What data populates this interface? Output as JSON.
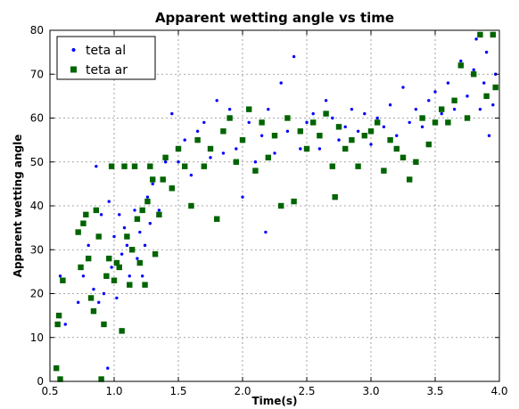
{
  "chart_data": {
    "type": "scatter",
    "title": "Apparent wetting angle vs time",
    "xlabel": "Time(s)",
    "ylabel": "Apparent wetting angle",
    "xlim": [
      0.5,
      4.0
    ],
    "ylim": [
      0,
      80
    ],
    "x_ticks": [
      "0.5",
      "1.0",
      "1.5",
      "2.0",
      "2.5",
      "3.0",
      "3.5",
      "4.0"
    ],
    "y_ticks": [
      "0",
      "10",
      "20",
      "30",
      "40",
      "50",
      "60",
      "70",
      "80"
    ],
    "grid": true,
    "legend_position": "top-left",
    "series": [
      {
        "name": "teta al",
        "marker": "dot",
        "color": "#0000ff",
        "points": [
          [
            0.56,
            15.0
          ],
          [
            0.58,
            24.0
          ],
          [
            0.62,
            13.0
          ],
          [
            0.72,
            18.0
          ],
          [
            0.76,
            24.0
          ],
          [
            0.8,
            31.0
          ],
          [
            0.84,
            21.0
          ],
          [
            0.86,
            49.0
          ],
          [
            0.88,
            18.0
          ],
          [
            0.9,
            38.0
          ],
          [
            0.92,
            20.0
          ],
          [
            0.95,
            3.0
          ],
          [
            0.96,
            41.0
          ],
          [
            0.98,
            26.0
          ],
          [
            1.0,
            33.0
          ],
          [
            1.02,
            19.0
          ],
          [
            1.04,
            38.0
          ],
          [
            1.06,
            29.0
          ],
          [
            1.08,
            35.0
          ],
          [
            1.1,
            31.0
          ],
          [
            1.12,
            24.0
          ],
          [
            1.14,
            30.0
          ],
          [
            1.16,
            39.0
          ],
          [
            1.18,
            28.0
          ],
          [
            1.2,
            34.0
          ],
          [
            1.22,
            24.0
          ],
          [
            1.24,
            31.0
          ],
          [
            1.26,
            42.0
          ],
          [
            1.28,
            36.0
          ],
          [
            1.3,
            45.0
          ],
          [
            1.35,
            39.0
          ],
          [
            1.4,
            50.0
          ],
          [
            1.45,
            61.0
          ],
          [
            1.5,
            50.0
          ],
          [
            1.55,
            55.0
          ],
          [
            1.6,
            47.0
          ],
          [
            1.65,
            57.0
          ],
          [
            1.7,
            59.0
          ],
          [
            1.75,
            51.0
          ],
          [
            1.8,
            64.0
          ],
          [
            1.85,
            52.0
          ],
          [
            1.9,
            62.0
          ],
          [
            1.95,
            53.0
          ],
          [
            2.0,
            42.0
          ],
          [
            2.05,
            59.0
          ],
          [
            2.1,
            50.0
          ],
          [
            2.15,
            56.0
          ],
          [
            2.18,
            34.0
          ],
          [
            2.2,
            62.0
          ],
          [
            2.25,
            52.0
          ],
          [
            2.3,
            68.0
          ],
          [
            2.35,
            57.0
          ],
          [
            2.4,
            74.0
          ],
          [
            2.45,
            53.0
          ],
          [
            2.5,
            59.0
          ],
          [
            2.55,
            61.0
          ],
          [
            2.6,
            53.0
          ],
          [
            2.65,
            64.0
          ],
          [
            2.7,
            60.0
          ],
          [
            2.75,
            55.0
          ],
          [
            2.8,
            58.0
          ],
          [
            2.85,
            62.0
          ],
          [
            2.9,
            57.0
          ],
          [
            2.95,
            61.0
          ],
          [
            3.0,
            54.0
          ],
          [
            3.05,
            60.0
          ],
          [
            3.1,
            58.0
          ],
          [
            3.15,
            63.0
          ],
          [
            3.2,
            56.0
          ],
          [
            3.25,
            67.0
          ],
          [
            3.3,
            59.0
          ],
          [
            3.35,
            62.0
          ],
          [
            3.4,
            58.0
          ],
          [
            3.45,
            64.0
          ],
          [
            3.5,
            66.0
          ],
          [
            3.55,
            61.0
          ],
          [
            3.6,
            68.0
          ],
          [
            3.65,
            62.0
          ],
          [
            3.7,
            73.0
          ],
          [
            3.75,
            65.0
          ],
          [
            3.8,
            71.0
          ],
          [
            3.82,
            78.0
          ],
          [
            3.85,
            62.0
          ],
          [
            3.88,
            68.0
          ],
          [
            3.9,
            75.0
          ],
          [
            3.92,
            56.0
          ],
          [
            3.95,
            63.0
          ],
          [
            3.97,
            70.0
          ]
        ]
      },
      {
        "name": "teta ar",
        "marker": "square",
        "color": "#006400",
        "points": [
          [
            0.55,
            3.0
          ],
          [
            0.56,
            13.0
          ],
          [
            0.57,
            15.0
          ],
          [
            0.58,
            0.5
          ],
          [
            0.6,
            23.0
          ],
          [
            0.72,
            34.0
          ],
          [
            0.74,
            26.0
          ],
          [
            0.76,
            36.0
          ],
          [
            0.78,
            38.0
          ],
          [
            0.8,
            28.0
          ],
          [
            0.82,
            19.0
          ],
          [
            0.84,
            16.0
          ],
          [
            0.86,
            39.0
          ],
          [
            0.88,
            33.0
          ],
          [
            0.9,
            0.5
          ],
          [
            0.92,
            13.0
          ],
          [
            0.94,
            24.0
          ],
          [
            0.96,
            28.0
          ],
          [
            0.98,
            49.0
          ],
          [
            1.0,
            23.0
          ],
          [
            1.02,
            27.0
          ],
          [
            1.04,
            26.0
          ],
          [
            1.06,
            11.5
          ],
          [
            1.08,
            49.0
          ],
          [
            1.1,
            33.0
          ],
          [
            1.12,
            22.0
          ],
          [
            1.14,
            30.0
          ],
          [
            1.16,
            49.0
          ],
          [
            1.18,
            37.0
          ],
          [
            1.2,
            27.0
          ],
          [
            1.22,
            39.0
          ],
          [
            1.24,
            22.0
          ],
          [
            1.26,
            41.0
          ],
          [
            1.28,
            49.0
          ],
          [
            1.3,
            46.0
          ],
          [
            1.32,
            29.0
          ],
          [
            1.35,
            38.0
          ],
          [
            1.38,
            46.0
          ],
          [
            1.4,
            51.0
          ],
          [
            1.45,
            44.0
          ],
          [
            1.5,
            53.0
          ],
          [
            1.55,
            49.0
          ],
          [
            1.6,
            40.0
          ],
          [
            1.65,
            55.0
          ],
          [
            1.7,
            49.0
          ],
          [
            1.75,
            53.0
          ],
          [
            1.8,
            37.0
          ],
          [
            1.85,
            57.0
          ],
          [
            1.9,
            60.0
          ],
          [
            1.95,
            50.0
          ],
          [
            2.0,
            55.0
          ],
          [
            2.05,
            62.0
          ],
          [
            2.1,
            48.0
          ],
          [
            2.15,
            59.0
          ],
          [
            2.2,
            51.0
          ],
          [
            2.25,
            56.0
          ],
          [
            2.3,
            40.0
          ],
          [
            2.35,
            60.0
          ],
          [
            2.4,
            41.0
          ],
          [
            2.45,
            57.0
          ],
          [
            2.5,
            53.0
          ],
          [
            2.55,
            59.0
          ],
          [
            2.6,
            56.0
          ],
          [
            2.65,
            61.0
          ],
          [
            2.7,
            49.0
          ],
          [
            2.72,
            42.0
          ],
          [
            2.75,
            58.0
          ],
          [
            2.8,
            53.0
          ],
          [
            2.85,
            55.0
          ],
          [
            2.9,
            49.0
          ],
          [
            2.95,
            56.0
          ],
          [
            3.0,
            57.0
          ],
          [
            3.05,
            59.0
          ],
          [
            3.1,
            48.0
          ],
          [
            3.15,
            55.0
          ],
          [
            3.2,
            53.0
          ],
          [
            3.25,
            51.0
          ],
          [
            3.3,
            46.0
          ],
          [
            3.35,
            50.0
          ],
          [
            3.4,
            60.0
          ],
          [
            3.45,
            54.0
          ],
          [
            3.5,
            59.0
          ],
          [
            3.55,
            62.0
          ],
          [
            3.6,
            59.0
          ],
          [
            3.65,
            64.0
          ],
          [
            3.7,
            72.0
          ],
          [
            3.75,
            60.0
          ],
          [
            3.8,
            70.0
          ],
          [
            3.85,
            79.0
          ],
          [
            3.9,
            65.0
          ],
          [
            3.95,
            79.0
          ],
          [
            3.97,
            67.0
          ]
        ]
      }
    ]
  }
}
